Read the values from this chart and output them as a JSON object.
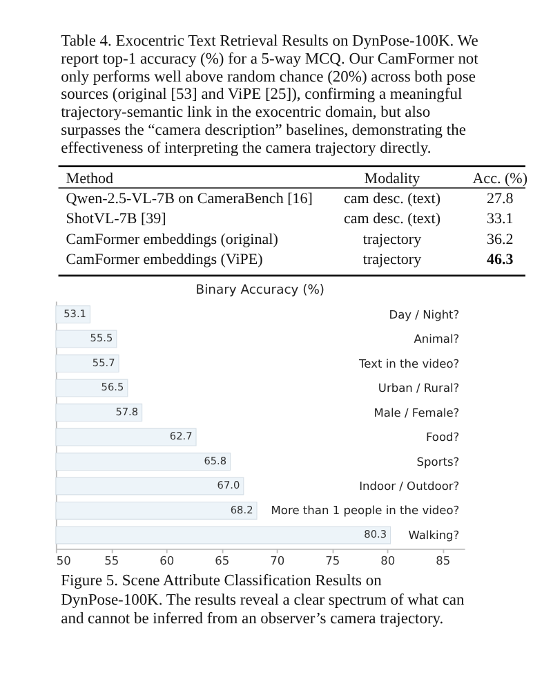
{
  "chart_data": {
    "type": "bar",
    "orientation": "horizontal",
    "title": "Binary Accuracy (%)",
    "categories": [
      "Day / Night?",
      "Animal?",
      "Text in the video?",
      "Urban / Rural?",
      "Male / Female?",
      "Food?",
      "Sports?",
      "Indoor / Outdoor?",
      "More than 1 people in the video?",
      "Walking?"
    ],
    "values": [
      53.1,
      55.5,
      55.7,
      56.5,
      57.8,
      62.7,
      65.8,
      67.0,
      68.2,
      80.3
    ],
    "value_labels": [
      "53.1",
      "55.5",
      "55.7",
      "56.5",
      "57.8",
      "62.7",
      "65.8",
      "67.0",
      "68.2",
      "80.3"
    ],
    "color": "#edf4f9",
    "xlim": [
      50,
      87
    ],
    "xticks": [
      50,
      55,
      60,
      65,
      70,
      75,
      80,
      85
    ],
    "grid": false,
    "annotations": [
      "Table 4. Exocentric Text Retrieval Results on DynPose-100K. We report top-1 accuracy (%) for a 5-way MCQ. Our CamFormer not only performs well above random chance (20%) across both pose sources (original [53] and ViPE [25]), confirming a meaningful trajectory-semantic link in the exocentric domain, but also surpasses the “camera description” baselines, demonstrating the effectiveness of interpreting the camera trajectory directly.",
      "Method",
      "Modality",
      "Acc. (%)",
      "Qwen-2.5-VL-7B on CameraBench [16]",
      "cam desc. (text)",
      "27.8",
      "ShotVL-7B [39]",
      "cam desc. (text)",
      "33.1",
      "CamFormer embeddings (original)",
      "trajectory",
      "36.2",
      "CamFormer embeddings (ViPE)",
      "trajectory",
      "46.3",
      "Figure 5.  Scene Attribute Classification Results on DynPose-100K. The results reveal a clear spectrum of what can and cannot be inferred from an observer’s camera trajectory."
    ]
  }
}
